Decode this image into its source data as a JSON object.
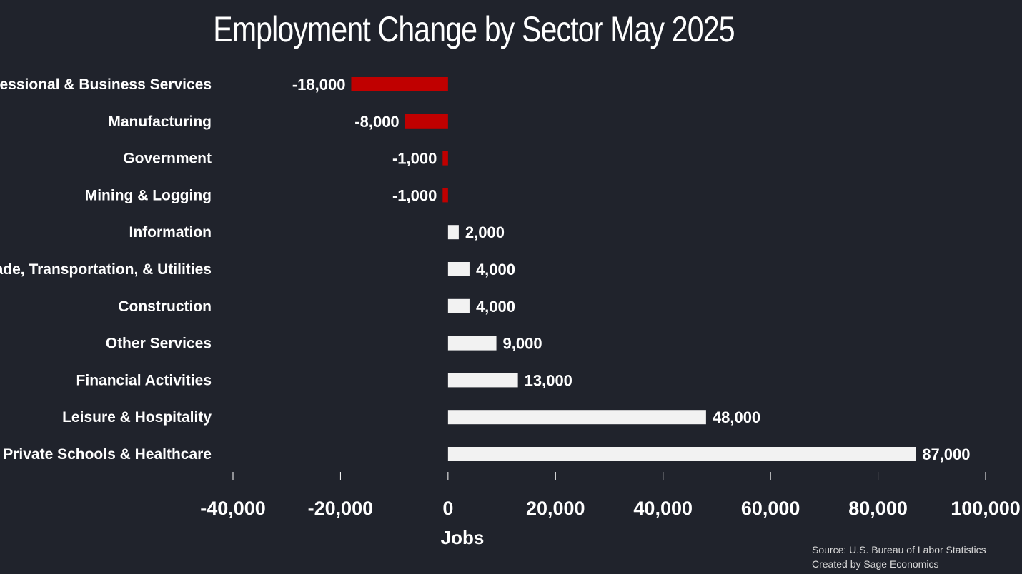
{
  "chart_data": {
    "type": "bar",
    "orientation": "horizontal",
    "title": "Employment Change by Sector May 2025",
    "xlabel": "Jobs",
    "ylabel": "",
    "xlim": [
      -40000,
      100000
    ],
    "ticks": [
      -40000,
      -20000,
      0,
      20000,
      40000,
      60000,
      80000,
      100000
    ],
    "tick_labels": [
      "-40,000",
      "-20,000",
      "0",
      "20,000",
      "40,000",
      "60,000",
      "80,000",
      "100,000"
    ],
    "categories": [
      "Professional & Business Services",
      "Manufacturing",
      "Government",
      "Mining & Logging",
      "Information",
      "Trade, Transportation, & Utilities",
      "Construction",
      "Other Services",
      "Financial Activities",
      "Leisure & Hospitality",
      "Private Schools & Healthcare"
    ],
    "values": [
      -18000,
      -8000,
      -1000,
      -1000,
      2000,
      4000,
      4000,
      9000,
      13000,
      48000,
      87000
    ],
    "value_labels": [
      "-18,000",
      "-8,000",
      "-1,000",
      "-1,000",
      "2,000",
      "4,000",
      "4,000",
      "9,000",
      "13,000",
      "48,000",
      "87,000"
    ],
    "colors": {
      "negative": "#c00000",
      "positive": "#f2f2f2",
      "background": "#20232c"
    },
    "grid": false,
    "legend": "none"
  },
  "source": {
    "line1": "Source: U.S. Bureau of Labor Statistics",
    "line2": "Created by Sage Economics"
  }
}
